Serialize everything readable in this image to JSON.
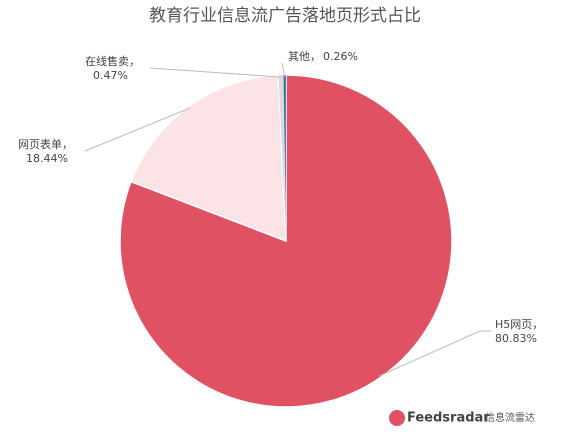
{
  "chart_data": {
    "type": "pie",
    "title": "教育行业信息流广告落地页形式占比",
    "categories": [
      "H5网页，",
      "网页表单，",
      "在线售卖，",
      "其他，"
    ],
    "values": [
      80.83,
      18.44,
      0.47,
      0.26
    ],
    "value_labels": [
      "80.83%",
      "18.44%",
      "0.47%",
      "0.26%"
    ],
    "colors": [
      "#e05263",
      "#fce4e6",
      "#d9d9d9",
      "#2f6ea8"
    ],
    "watermark": {
      "brand": "Feedsradar",
      "subtitle": "信息流雷达"
    }
  }
}
